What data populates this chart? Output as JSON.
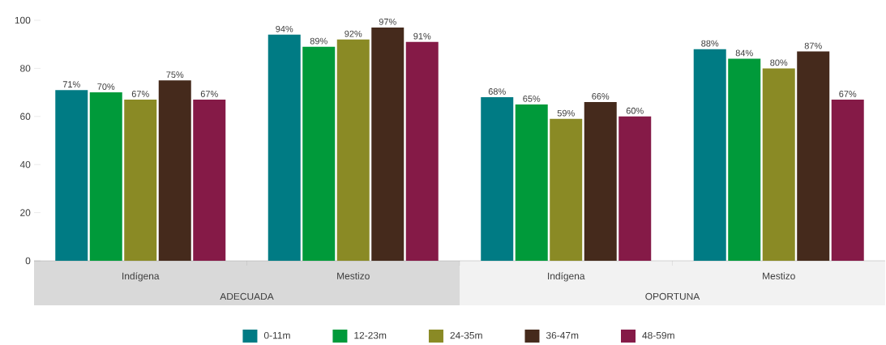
{
  "chart_data": {
    "type": "bar",
    "categories": [
      "Indígena",
      "Mestizo",
      "Indígena",
      "Mestizo"
    ],
    "annotations": [
      "ADECUADA",
      "OPORTUNA"
    ],
    "series": [
      {
        "name": "0-11m",
        "color": "#007b84",
        "values": [
          71,
          94,
          68,
          88
        ],
        "value_labels": [
          "71%",
          "94%",
          "68%",
          "88%"
        ]
      },
      {
        "name": "12-23m",
        "color": "#009a3a",
        "values": [
          70,
          89,
          65,
          84
        ],
        "value_labels": [
          "70%",
          "89%",
          "65%",
          "84%"
        ]
      },
      {
        "name": "24-35m",
        "color": "#8a8a25",
        "values": [
          67,
          92,
          59,
          80
        ],
        "value_labels": [
          "67%",
          "92%",
          "59%",
          "80%"
        ]
      },
      {
        "name": "36-47m",
        "color": "#452a1c",
        "values": [
          75,
          97,
          66,
          87
        ],
        "value_labels": [
          "75%",
          "97%",
          "66%",
          "87%"
        ]
      },
      {
        "name": "48-59m",
        "color": "#851a47",
        "values": [
          67,
          91,
          60,
          67
        ],
        "value_labels": [
          "67%",
          "91%",
          "60%",
          "67%"
        ]
      }
    ],
    "ylim": [
      0,
      100
    ],
    "yticks": [
      0,
      20,
      40,
      60,
      80,
      100
    ],
    "legend": "bottom"
  }
}
